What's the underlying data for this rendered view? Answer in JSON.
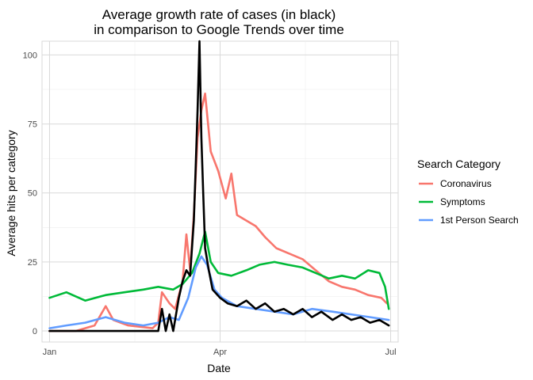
{
  "chart_data": {
    "type": "line",
    "title_line1": "Average growth rate of cases (in black)",
    "title_line2": "in comparison to Google Trends over time",
    "xlabel": "Date",
    "ylabel": "Average hits per category",
    "xlim": [
      "2019-12-28",
      "2020-07-05"
    ],
    "ylim": [
      -4,
      105
    ],
    "x_ticks": [
      {
        "date": "2020-01-01",
        "label": "Jan"
      },
      {
        "date": "2020-04-01",
        "label": "Apr"
      },
      {
        "date": "2020-07-01",
        "label": "Jul"
      }
    ],
    "y_ticks": [
      0,
      25,
      50,
      75,
      100
    ],
    "grid": true,
    "legend": {
      "title": "Search Category",
      "position": "right",
      "entries": [
        {
          "label": "Coronavirus",
          "color": "#F8766D"
        },
        {
          "label": "Symptoms",
          "color": "#00BA38"
        },
        {
          "label": "1st Person Search",
          "color": "#619CFF"
        }
      ]
    },
    "series": [
      {
        "name": "Coronavirus",
        "color": "#F8766D",
        "points": [
          [
            "2020-01-01",
            0
          ],
          [
            "2020-01-15",
            0
          ],
          [
            "2020-01-25",
            2
          ],
          [
            "2020-01-31",
            9
          ],
          [
            "2020-02-04",
            4
          ],
          [
            "2020-02-12",
            2
          ],
          [
            "2020-02-25",
            1
          ],
          [
            "2020-02-28",
            3
          ],
          [
            "2020-03-01",
            14
          ],
          [
            "2020-03-05",
            10
          ],
          [
            "2020-03-08",
            8
          ],
          [
            "2020-03-12",
            18
          ],
          [
            "2020-03-14",
            35
          ],
          [
            "2020-03-16",
            22
          ],
          [
            "2020-03-18",
            42
          ],
          [
            "2020-03-20",
            70
          ],
          [
            "2020-03-22",
            80
          ],
          [
            "2020-03-24",
            86
          ],
          [
            "2020-03-27",
            65
          ],
          [
            "2020-03-31",
            58
          ],
          [
            "2020-04-04",
            48
          ],
          [
            "2020-04-07",
            57
          ],
          [
            "2020-04-10",
            42
          ],
          [
            "2020-04-15",
            40
          ],
          [
            "2020-04-20",
            38
          ],
          [
            "2020-04-25",
            34
          ],
          [
            "2020-05-01",
            30
          ],
          [
            "2020-05-08",
            28
          ],
          [
            "2020-05-15",
            26
          ],
          [
            "2020-05-22",
            22
          ],
          [
            "2020-05-29",
            18
          ],
          [
            "2020-06-05",
            16
          ],
          [
            "2020-06-12",
            15
          ],
          [
            "2020-06-19",
            13
          ],
          [
            "2020-06-26",
            12
          ],
          [
            "2020-06-29",
            10
          ]
        ]
      },
      {
        "name": "Symptoms",
        "color": "#00BA38",
        "points": [
          [
            "2020-01-01",
            12
          ],
          [
            "2020-01-10",
            14
          ],
          [
            "2020-01-20",
            11
          ],
          [
            "2020-01-31",
            13
          ],
          [
            "2020-02-10",
            14
          ],
          [
            "2020-02-20",
            15
          ],
          [
            "2020-02-28",
            16
          ],
          [
            "2020-03-07",
            15
          ],
          [
            "2020-03-12",
            17
          ],
          [
            "2020-03-17",
            21
          ],
          [
            "2020-03-21",
            28
          ],
          [
            "2020-03-24",
            36
          ],
          [
            "2020-03-27",
            25
          ],
          [
            "2020-03-31",
            21
          ],
          [
            "2020-04-07",
            20
          ],
          [
            "2020-04-15",
            22
          ],
          [
            "2020-04-22",
            24
          ],
          [
            "2020-04-30",
            25
          ],
          [
            "2020-05-07",
            24
          ],
          [
            "2020-05-15",
            23
          ],
          [
            "2020-05-22",
            21
          ],
          [
            "2020-05-29",
            19
          ],
          [
            "2020-06-05",
            20
          ],
          [
            "2020-06-12",
            19
          ],
          [
            "2020-06-19",
            22
          ],
          [
            "2020-06-25",
            21
          ],
          [
            "2020-06-28",
            16
          ],
          [
            "2020-06-30",
            8
          ]
        ]
      },
      {
        "name": "1st Person Search",
        "color": "#619CFF",
        "points": [
          [
            "2020-01-01",
            1
          ],
          [
            "2020-01-10",
            2
          ],
          [
            "2020-01-20",
            3
          ],
          [
            "2020-01-31",
            5
          ],
          [
            "2020-02-10",
            3
          ],
          [
            "2020-02-20",
            2
          ],
          [
            "2020-02-28",
            3
          ],
          [
            "2020-03-05",
            5
          ],
          [
            "2020-03-10",
            4
          ],
          [
            "2020-03-15",
            12
          ],
          [
            "2020-03-19",
            23
          ],
          [
            "2020-03-22",
            27
          ],
          [
            "2020-03-25",
            24
          ],
          [
            "2020-03-29",
            15
          ],
          [
            "2020-04-02",
            12
          ],
          [
            "2020-04-10",
            9
          ],
          [
            "2020-04-20",
            8
          ],
          [
            "2020-04-30",
            7
          ],
          [
            "2020-05-10",
            6
          ],
          [
            "2020-05-20",
            8
          ],
          [
            "2020-05-31",
            7
          ],
          [
            "2020-06-10",
            6
          ],
          [
            "2020-06-20",
            5
          ],
          [
            "2020-06-30",
            4
          ]
        ]
      },
      {
        "name": "",
        "color": "#000000",
        "points": [
          [
            "2020-01-01",
            0
          ],
          [
            "2020-02-28",
            0
          ],
          [
            "2020-03-01",
            8
          ],
          [
            "2020-03-03",
            0
          ],
          [
            "2020-03-05",
            6
          ],
          [
            "2020-03-07",
            0
          ],
          [
            "2020-03-10",
            12
          ],
          [
            "2020-03-12",
            18
          ],
          [
            "2020-03-14",
            22
          ],
          [
            "2020-03-16",
            20
          ],
          [
            "2020-03-18",
            40
          ],
          [
            "2020-03-19",
            60
          ],
          [
            "2020-03-20",
            80
          ],
          [
            "2020-03-21",
            105
          ],
          [
            "2020-03-22",
            70
          ],
          [
            "2020-03-23",
            50
          ],
          [
            "2020-03-24",
            30
          ],
          [
            "2020-03-26",
            22
          ],
          [
            "2020-03-28",
            15
          ],
          [
            "2020-04-01",
            12
          ],
          [
            "2020-04-05",
            10
          ],
          [
            "2020-04-10",
            9
          ],
          [
            "2020-04-15",
            11
          ],
          [
            "2020-04-20",
            8
          ],
          [
            "2020-04-25",
            10
          ],
          [
            "2020-04-30",
            7
          ],
          [
            "2020-05-05",
            8
          ],
          [
            "2020-05-10",
            6
          ],
          [
            "2020-05-15",
            8
          ],
          [
            "2020-05-20",
            5
          ],
          [
            "2020-05-25",
            7
          ],
          [
            "2020-05-31",
            4
          ],
          [
            "2020-06-05",
            6
          ],
          [
            "2020-06-10",
            4
          ],
          [
            "2020-06-15",
            5
          ],
          [
            "2020-06-20",
            3
          ],
          [
            "2020-06-25",
            4
          ],
          [
            "2020-06-30",
            2
          ]
        ]
      }
    ]
  }
}
